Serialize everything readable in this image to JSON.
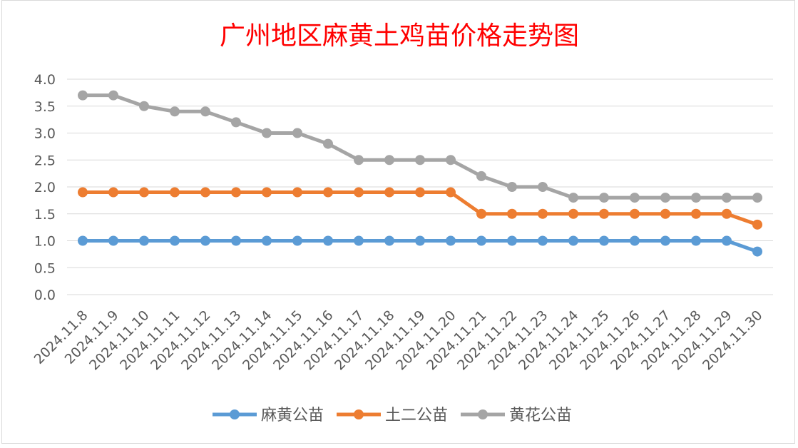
{
  "chart_data": {
    "type": "line",
    "title": "广州地区麻黄土鸡苗价格走势图",
    "title_color": "#ff0000",
    "categories": [
      "2024.11.8",
      "2024.11.9",
      "2024.11.10",
      "2024.11.11",
      "2024.11.12",
      "2024.11.13",
      "2024.11.14",
      "2024.11.15",
      "2024.11.16",
      "2024.11.17",
      "2024.11.18",
      "2024.11.19",
      "2024.11.20",
      "2024.11.21",
      "2024.11.22",
      "2024.11.23",
      "2024.11.24",
      "2024.11.25",
      "2024.11.26",
      "2024.11.27",
      "2024.11.28",
      "2024.11.29",
      "2024.11.30"
    ],
    "series": [
      {
        "name": "麻黄公苗",
        "color": "#5b9bd5",
        "values": [
          1.0,
          1.0,
          1.0,
          1.0,
          1.0,
          1.0,
          1.0,
          1.0,
          1.0,
          1.0,
          1.0,
          1.0,
          1.0,
          1.0,
          1.0,
          1.0,
          1.0,
          1.0,
          1.0,
          1.0,
          1.0,
          1.0,
          0.8
        ]
      },
      {
        "name": "土二公苗",
        "color": "#ed7d31",
        "values": [
          1.9,
          1.9,
          1.9,
          1.9,
          1.9,
          1.9,
          1.9,
          1.9,
          1.9,
          1.9,
          1.9,
          1.9,
          1.9,
          1.5,
          1.5,
          1.5,
          1.5,
          1.5,
          1.5,
          1.5,
          1.5,
          1.5,
          1.3
        ]
      },
      {
        "name": "黄花公苗",
        "color": "#a5a5a5",
        "values": [
          3.7,
          3.7,
          3.5,
          3.4,
          3.4,
          3.2,
          3.0,
          3.0,
          2.8,
          2.5,
          2.5,
          2.5,
          2.5,
          2.2,
          2.0,
          2.0,
          1.8,
          1.8,
          1.8,
          1.8,
          1.8,
          1.8,
          1.8
        ]
      }
    ],
    "y_ticks": [
      "0.0",
      "0.5",
      "1.0",
      "1.5",
      "2.0",
      "2.5",
      "3.0",
      "3.5",
      "4.0"
    ],
    "ylim": [
      0,
      4.0
    ],
    "grid": true,
    "legend_position": "bottom"
  }
}
